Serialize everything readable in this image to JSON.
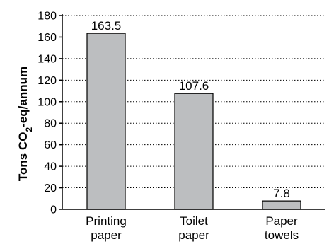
{
  "chart_data": {
    "type": "bar",
    "categories": [
      [
        "Printing",
        "paper"
      ],
      [
        "Toilet",
        "paper"
      ],
      [
        "Paper",
        "towels"
      ]
    ],
    "values": [
      163.5,
      107.6,
      7.8
    ],
    "data_labels": [
      "163.5",
      "107.6",
      "7.8"
    ],
    "title": "",
    "xlabel": "",
    "ylabel": {
      "prefix": "Tons CO",
      "subscript": "2",
      "suffix": "-eq/annum"
    },
    "ylim": [
      0,
      180
    ],
    "yticks": [
      0,
      20,
      40,
      60,
      80,
      100,
      120,
      140,
      160,
      180
    ],
    "grid": "horizontal-dotted",
    "legend": "none",
    "colors": {
      "bar_fill": "#bcbec0",
      "bar_stroke": "#000000",
      "axis": "#000000",
      "text": "#000000"
    }
  }
}
